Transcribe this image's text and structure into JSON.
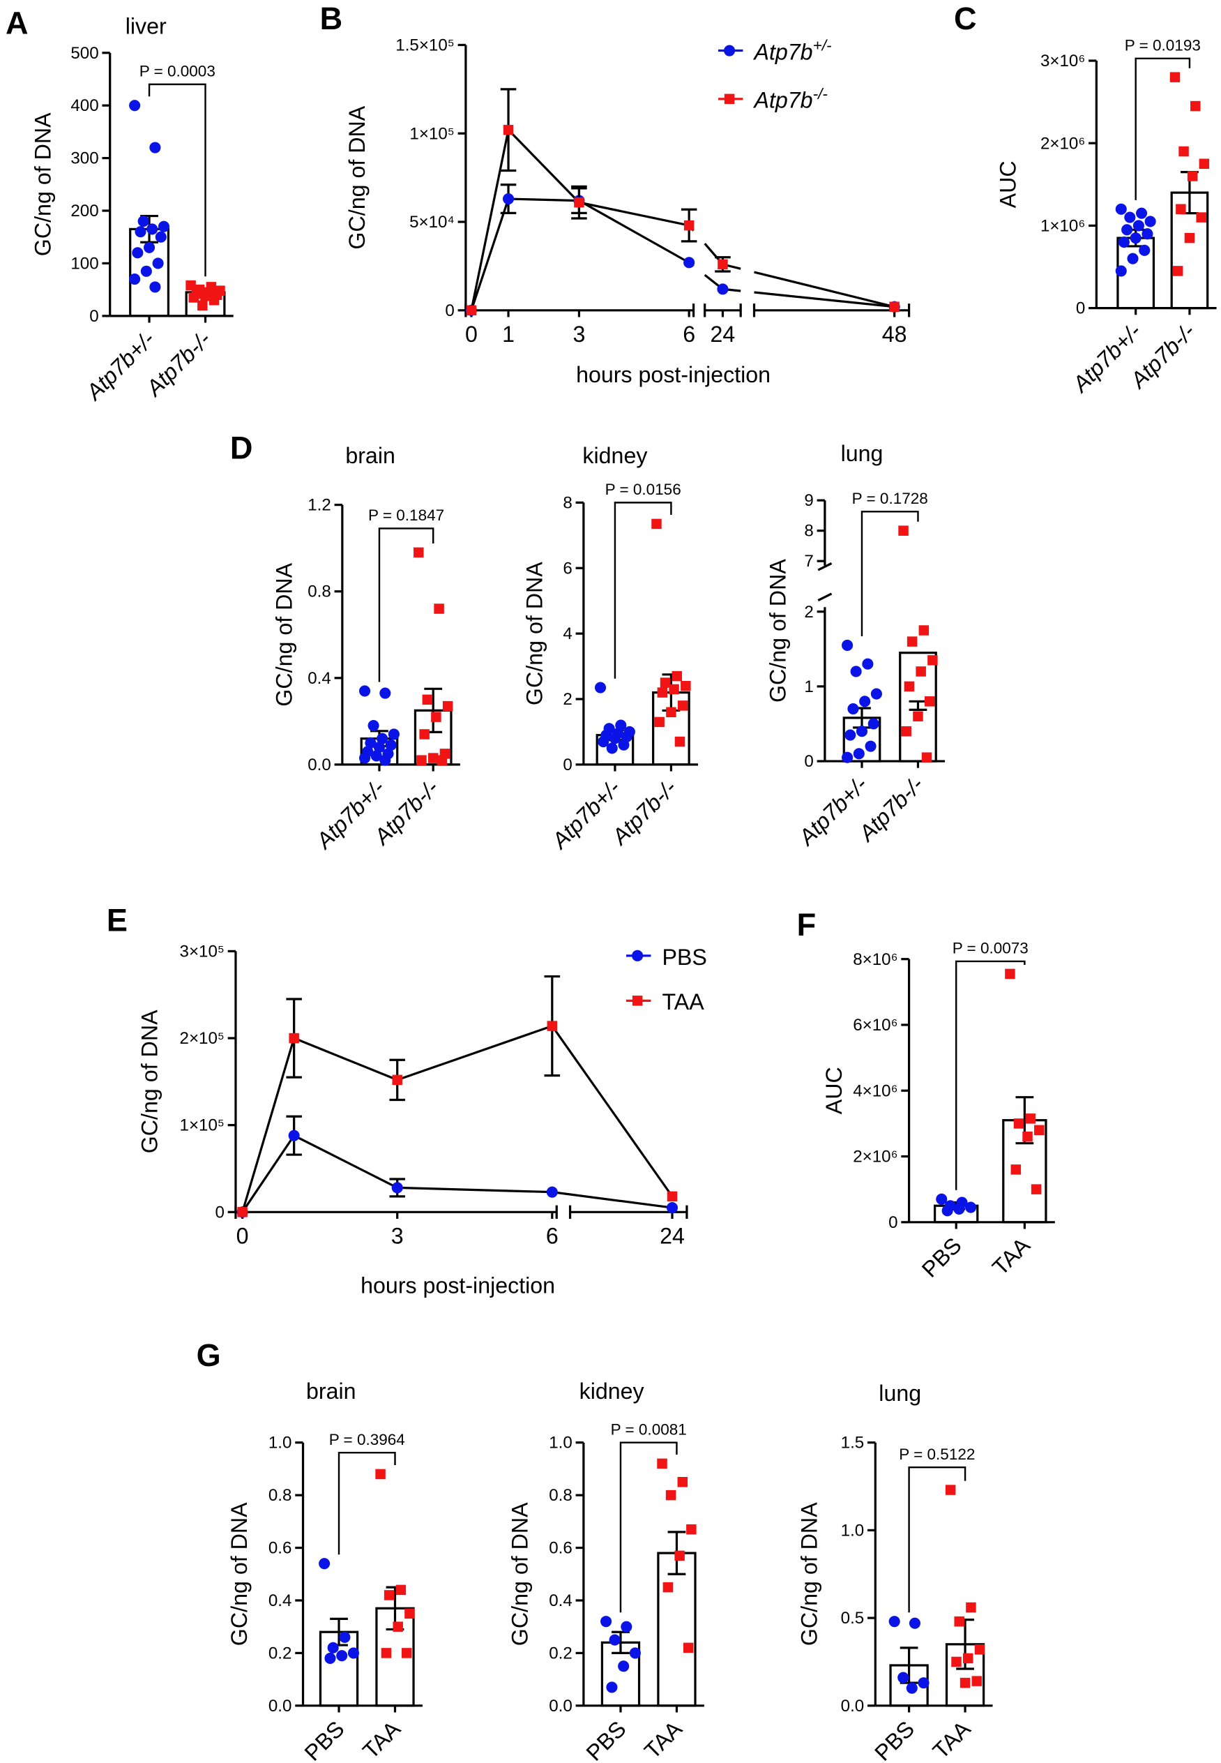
{
  "colors": {
    "group1": "#0a14e6",
    "group2": "#f01414"
  },
  "chart_data": [
    {
      "id": "A",
      "letter": "A",
      "type": "bar",
      "title": "liver",
      "ylabel": "GC/ng of DNA",
      "ylim": [
        0,
        500
      ],
      "ticks": [
        {
          "v": 0,
          "label": "0"
        },
        {
          "v": 100,
          "label": "100"
        },
        {
          "v": 200,
          "label": "200"
        },
        {
          "v": 300,
          "label": "300"
        },
        {
          "v": 400,
          "label": "400"
        },
        {
          "v": 500,
          "label": "500"
        }
      ],
      "groups": [
        "Atp7b+/-",
        "Atp7b-/-"
      ],
      "means": [
        165,
        45
      ],
      "sem": [
        25,
        5
      ],
      "points": [
        [
          400,
          320,
          180,
          170,
          165,
          160,
          150,
          130,
          120,
          100,
          85,
          70,
          55
        ],
        [
          58,
          55,
          50,
          48,
          45,
          42,
          40,
          38,
          35,
          30,
          20
        ]
      ],
      "pvalue": "P = 0.0003"
    },
    {
      "id": "B",
      "letter": "B",
      "type": "line",
      "ylabel": "GC/ng of DNA",
      "xlabel": "hours post-injection",
      "ylim": [
        0,
        150000
      ],
      "x": [
        0,
        1,
        3,
        6,
        24,
        48
      ],
      "xticks": [
        "0",
        "1",
        "3",
        "6",
        "24",
        "48"
      ],
      "ticks": [
        {
          "v": 0,
          "label": "0"
        },
        {
          "v": 50000,
          "label": "5×10⁴"
        },
        {
          "v": 100000,
          "label": "1×10⁵"
        },
        {
          "v": 150000,
          "label": "1.5×10⁵"
        }
      ],
      "series": [
        {
          "name": "Atp7b+/-",
          "values": [
            0,
            63000,
            62000,
            27000,
            12000,
            2000
          ],
          "sem": [
            0,
            8000,
            7000,
            0,
            0,
            0
          ]
        },
        {
          "name": "Atp7b-/-",
          "values": [
            0,
            102000,
            61000,
            48000,
            26000,
            2000
          ],
          "sem": [
            0,
            23000,
            9000,
            9000,
            4000,
            0
          ]
        }
      ]
    },
    {
      "id": "C",
      "letter": "C",
      "type": "bar",
      "title": "",
      "ylabel": "AUC",
      "ylim": [
        0,
        3000000
      ],
      "ticks": [
        {
          "v": 0,
          "label": "0"
        },
        {
          "v": 1000000,
          "label": "1×10⁶"
        },
        {
          "v": 2000000,
          "label": "2×10⁶"
        },
        {
          "v": 3000000,
          "label": "3×10⁶"
        }
      ],
      "groups": [
        "Atp7b+/-",
        "Atp7b-/-"
      ],
      "means": [
        850000,
        1400000
      ],
      "sem": [
        100000,
        250000
      ],
      "points": [
        [
          1200000,
          1150000,
          1100000,
          1050000,
          1000000,
          950000,
          900000,
          850000,
          800000,
          700000,
          600000,
          450000
        ],
        [
          2800000,
          2450000,
          1900000,
          1750000,
          1600000,
          1200000,
          1100000,
          850000,
          450000
        ]
      ],
      "pvalue": "P = 0.0193"
    },
    {
      "id": "D-brain",
      "letter": "D",
      "type": "bar",
      "title": "brain",
      "ylabel": "GC/ng of DNA",
      "ylim": [
        0,
        1.2
      ],
      "ticks": [
        {
          "v": 0,
          "label": "0.0"
        },
        {
          "v": 0.4,
          "label": "0.4"
        },
        {
          "v": 0.8,
          "label": "0.8"
        },
        {
          "v": 1.2,
          "label": "1.2"
        }
      ],
      "groups": [
        "Atp7b+/-",
        "Atp7b-/-"
      ],
      "means": [
        0.12,
        0.25
      ],
      "sem": [
        0.035,
        0.1
      ],
      "points": [
        [
          0.34,
          0.33,
          0.18,
          0.14,
          0.12,
          0.1,
          0.09,
          0.08,
          0.06,
          0.05,
          0.04,
          0.03,
          0.02
        ],
        [
          0.98,
          0.72,
          0.3,
          0.27,
          0.22,
          0.14,
          0.05,
          0.03,
          0.02,
          0.02
        ]
      ],
      "pvalue": "P = 0.1847"
    },
    {
      "id": "D-kidney",
      "letter": "",
      "type": "bar",
      "title": "kidney",
      "ylabel": "GC/ng of DNA",
      "ylim": [
        0,
        8
      ],
      "ticks": [
        {
          "v": 0,
          "label": "0"
        },
        {
          "v": 2,
          "label": "2"
        },
        {
          "v": 4,
          "label": "4"
        },
        {
          "v": 6,
          "label": "6"
        },
        {
          "v": 8,
          "label": "8"
        }
      ],
      "groups": [
        "Atp7b+/-",
        "Atp7b-/-"
      ],
      "means": [
        0.9,
        2.2
      ],
      "sem": [
        0.15,
        0.55
      ],
      "points": [
        [
          2.35,
          1.2,
          1.1,
          1.0,
          0.95,
          0.9,
          0.85,
          0.8,
          0.7,
          0.6,
          0.5
        ],
        [
          7.35,
          2.7,
          2.5,
          2.4,
          2.3,
          2.2,
          1.8,
          1.6,
          1.3,
          0.7
        ]
      ],
      "pvalue": "P = 0.0156"
    },
    {
      "id": "D-lung",
      "letter": "",
      "type": "bar",
      "title": "lung",
      "ylabel": "GC/ng of DNA",
      "ylim": [
        0,
        9
      ],
      "axis_break": [
        2,
        7
      ],
      "ticks": [
        {
          "v": 0,
          "label": "0"
        },
        {
          "v": 1,
          "label": "1"
        },
        {
          "v": 2,
          "label": "2"
        },
        {
          "v": 7,
          "label": "7"
        },
        {
          "v": 8,
          "label": "8"
        },
        {
          "v": 9,
          "label": "9"
        }
      ],
      "groups": [
        "Atp7b+/-",
        "Atp7b-/-"
      ],
      "means": [
        0.58,
        1.45
      ],
      "sem": [
        0.13,
        0.65
      ],
      "points": [
        [
          1.55,
          1.3,
          1.2,
          0.9,
          0.8,
          0.7,
          0.5,
          0.4,
          0.35,
          0.2,
          0.1,
          0.05
        ],
        [
          8.0,
          1.75,
          1.6,
          1.35,
          1.2,
          1.0,
          0.8,
          0.6,
          0.4,
          0.05
        ]
      ],
      "pvalue": "P = 0.1728"
    },
    {
      "id": "E",
      "letter": "E",
      "type": "line",
      "ylabel": "GC/ng of DNA",
      "xlabel": "hours post-injection",
      "ylim": [
        0,
        300000
      ],
      "x": [
        0,
        1,
        3,
        6,
        24
      ],
      "xticks": [
        "0",
        "3",
        "6",
        "24"
      ],
      "xtick_values": [
        0,
        3,
        6,
        24
      ],
      "ticks": [
        {
          "v": 0,
          "label": "0"
        },
        {
          "v": 100000,
          "label": "1×10⁵"
        },
        {
          "v": 200000,
          "label": "2×10⁵"
        },
        {
          "v": 300000,
          "label": "3×10⁵"
        }
      ],
      "series": [
        {
          "name": "PBS",
          "values": [
            0,
            88000,
            28000,
            23000,
            5000
          ],
          "sem": [
            0,
            22000,
            10000,
            0,
            0
          ]
        },
        {
          "name": "TAA",
          "values": [
            0,
            200000,
            152000,
            214000,
            18000
          ],
          "sem": [
            0,
            45000,
            23000,
            57000,
            0
          ]
        }
      ]
    },
    {
      "id": "F",
      "letter": "F",
      "type": "bar",
      "title": "",
      "ylabel": "AUC",
      "ylim": [
        0,
        8000000
      ],
      "ticks": [
        {
          "v": 0,
          "label": "0"
        },
        {
          "v": 2000000,
          "label": "2×10⁶"
        },
        {
          "v": 4000000,
          "label": "4×10⁶"
        },
        {
          "v": 6000000,
          "label": "6×10⁶"
        },
        {
          "v": 8000000,
          "label": "8×10⁶"
        }
      ],
      "groups": [
        "PBS",
        "TAA"
      ],
      "means": [
        500000,
        3100000
      ],
      "sem": [
        100000,
        700000
      ],
      "points": [
        [
          700000,
          600000,
          500000,
          450000,
          400000,
          350000
        ],
        [
          7550000,
          3150000,
          3000000,
          2800000,
          2600000,
          1600000,
          1000000
        ]
      ],
      "pvalue": "P = 0.0073"
    },
    {
      "id": "G-brain",
      "letter": "G",
      "type": "bar",
      "title": "brain",
      "ylabel": "GC/ng of DNA",
      "ylim": [
        0,
        1.0
      ],
      "ticks": [
        {
          "v": 0,
          "label": "0.0"
        },
        {
          "v": 0.2,
          "label": "0.2"
        },
        {
          "v": 0.4,
          "label": "0.4"
        },
        {
          "v": 0.6,
          "label": "0.6"
        },
        {
          "v": 0.8,
          "label": "0.8"
        },
        {
          "v": 1.0,
          "label": "1.0"
        }
      ],
      "groups": [
        "PBS",
        "TAA"
      ],
      "means": [
        0.28,
        0.37
      ],
      "sem": [
        0.05,
        0.08
      ],
      "points": [
        [
          0.54,
          0.26,
          0.22,
          0.2,
          0.19,
          0.18
        ],
        [
          0.88,
          0.44,
          0.42,
          0.35,
          0.3,
          0.2,
          0.2
        ]
      ],
      "pvalue": "P = 0.3964"
    },
    {
      "id": "G-kidney",
      "letter": "",
      "type": "bar",
      "title": "kidney",
      "ylabel": "GC/ng of DNA",
      "ylim": [
        0,
        1.0
      ],
      "ticks": [
        {
          "v": 0,
          "label": "0.0"
        },
        {
          "v": 0.2,
          "label": "0.2"
        },
        {
          "v": 0.4,
          "label": "0.4"
        },
        {
          "v": 0.6,
          "label": "0.6"
        },
        {
          "v": 0.8,
          "label": "0.8"
        },
        {
          "v": 1.0,
          "label": "1.0"
        }
      ],
      "groups": [
        "PBS",
        "TAA"
      ],
      "means": [
        0.24,
        0.58
      ],
      "sem": [
        0.04,
        0.08
      ],
      "points": [
        [
          0.32,
          0.3,
          0.25,
          0.2,
          0.15,
          0.07
        ],
        [
          0.92,
          0.85,
          0.8,
          0.67,
          0.57,
          0.45,
          0.22
        ]
      ],
      "pvalue": "P = 0.0081"
    },
    {
      "id": "G-lung",
      "letter": "",
      "type": "bar",
      "title": "lung",
      "ylabel": "GC/ng of DNA",
      "ylim": [
        0,
        1.5
      ],
      "ticks": [
        {
          "v": 0,
          "label": "0.0"
        },
        {
          "v": 0.5,
          "label": "0.5"
        },
        {
          "v": 1.0,
          "label": "1.0"
        },
        {
          "v": 1.5,
          "label": "1.5"
        }
      ],
      "groups": [
        "PBS",
        "TAA"
      ],
      "means": [
        0.23,
        0.35
      ],
      "sem": [
        0.1,
        0.14
      ],
      "points": [
        [
          0.48,
          0.47,
          0.16,
          0.13,
          0.1
        ],
        [
          1.23,
          0.56,
          0.48,
          0.32,
          0.27,
          0.25,
          0.14,
          0.13
        ]
      ],
      "pvalue": "P = 0.5122"
    }
  ]
}
